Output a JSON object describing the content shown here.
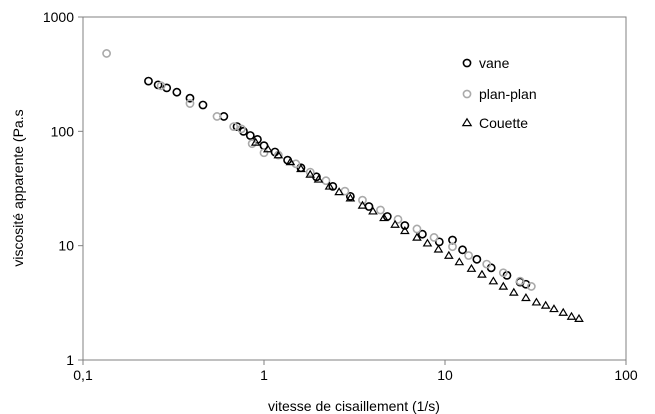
{
  "chart_data": {
    "type": "scatter",
    "title": "",
    "xlabel": "vitesse de cisaillement (1/s)",
    "ylabel": "viscosité apparente (Pa.s",
    "x_scale": "log",
    "y_scale": "log",
    "xlim": [
      0.1,
      100
    ],
    "ylim": [
      1,
      1000
    ],
    "x_ticks": [
      "0,1",
      "1",
      "10",
      "100"
    ],
    "y_ticks": [
      "1",
      "10",
      "100",
      "1000"
    ],
    "grid": false,
    "legend_position": "top-right",
    "series": [
      {
        "name": "vane",
        "marker": "circle",
        "color": "#000000",
        "x": [
          0.23,
          0.26,
          0.29,
          0.33,
          0.39,
          0.46,
          0.6,
          0.71,
          0.77,
          0.84,
          0.92,
          1.0,
          1.15,
          1.35,
          1.6,
          1.95,
          2.4,
          3.0,
          3.8,
          4.8,
          6.0,
          7.5,
          9.3,
          11.0,
          12.5,
          15.0,
          18.0,
          22.0,
          26.0,
          28.0
        ],
        "y": [
          275,
          255,
          240,
          220,
          195,
          170,
          135,
          110,
          100,
          92,
          85,
          75,
          66,
          56,
          48,
          40,
          33,
          27,
          22,
          18,
          15,
          12.6,
          10.8,
          11.2,
          9.2,
          7.6,
          6.4,
          5.5,
          4.8,
          4.6
        ]
      },
      {
        "name": "plan-plan",
        "marker": "circle",
        "color": "#aaaaaa",
        "x": [
          0.135,
          0.27,
          0.39,
          0.55,
          0.68,
          0.75,
          0.86,
          1.0,
          1.2,
          1.5,
          1.8,
          2.2,
          2.8,
          3.5,
          4.4,
          5.5,
          7.0,
          8.7,
          11.0,
          13.5,
          17.0,
          21.0,
          26.0,
          30.0
        ],
        "y": [
          480,
          250,
          175,
          135,
          110,
          105,
          78,
          65,
          62,
          52,
          44,
          37,
          30,
          25,
          20.5,
          17,
          14,
          11.8,
          9.8,
          8.2,
          6.9,
          5.8,
          4.9,
          4.4
        ]
      },
      {
        "name": "Couette",
        "marker": "triangle",
        "color": "#000000",
        "x": [
          0.9,
          1.05,
          1.2,
          1.4,
          1.6,
          1.8,
          2.0,
          2.3,
          2.6,
          3.0,
          3.5,
          4.0,
          4.6,
          5.3,
          6.0,
          7.0,
          8.0,
          9.2,
          10.5,
          12.0,
          14.0,
          16.0,
          18.5,
          21.0,
          24.0,
          28.0,
          32.0,
          36.0,
          40.0,
          45.0,
          50.0,
          55.0
        ],
        "y": [
          80,
          70,
          62,
          54,
          47,
          42,
          38,
          33,
          29.5,
          26,
          22.5,
          20,
          17.5,
          15.3,
          13.5,
          11.8,
          10.5,
          9.3,
          8.2,
          7.2,
          6.3,
          5.6,
          4.9,
          4.4,
          3.9,
          3.5,
          3.2,
          3.0,
          2.8,
          2.6,
          2.4,
          2.3
        ]
      }
    ]
  }
}
